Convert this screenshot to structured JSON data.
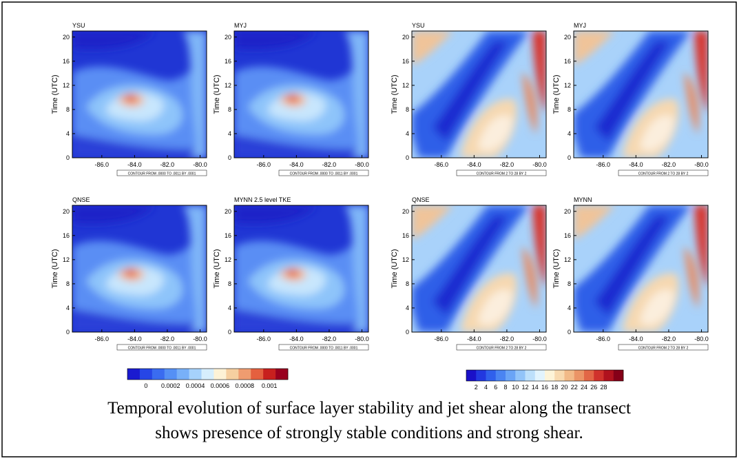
{
  "panels": [
    {
      "title": "YSU",
      "ylabel": "Time (UTC)",
      "kind": "stability",
      "note": "CONTOUR FROM .0000 TO .0011 BY .0001"
    },
    {
      "title": "MYJ",
      "ylabel": "Time (UTC)",
      "kind": "stability",
      "note": "CONTOUR FROM .0000 TO .0011 BY .0001"
    },
    {
      "title": "YSU",
      "ylabel": "Time (UTC)",
      "kind": "shear",
      "note": "CONTOUR FROM 2 TO 28 BY 2"
    },
    {
      "title": "MYJ",
      "ylabel": "Time (UTC)",
      "kind": "shear",
      "note": "CONTOUR FROM 2 TO 28 BY 2"
    },
    {
      "title": "QNSE",
      "ylabel": "Time (UTC)",
      "kind": "stability",
      "note": "CONTOUR FROM .0000 TO .0011 BY .0001"
    },
    {
      "title": "MYNN 2.5 level TKE",
      "ylabel": "Time (UTC)",
      "kind": "stability",
      "note": "CONTOUR FROM .0000 TO .0011 BY .0001"
    },
    {
      "title": "QNSE",
      "ylabel": "Time (UTC)",
      "kind": "shear",
      "note": "CONTOUR FROM 2 TO 28 BY 2"
    },
    {
      "title": "MYNN",
      "ylabel": "Time (UTC)",
      "kind": "shear",
      "note": "CONTOUR FROM 2 TO 28 BY 2"
    }
  ],
  "axes": {
    "yticks": [
      0,
      4,
      8,
      12,
      16,
      20
    ],
    "ylim": [
      0,
      21
    ],
    "xticks": [
      {
        "value": -86,
        "label": "-86.0"
      },
      {
        "value": -84,
        "label": "-84.0"
      },
      {
        "value": -82,
        "label": "-82.0"
      },
      {
        "value": -80,
        "label": "-80.0"
      }
    ],
    "xlim": [
      -87.8,
      -79.6
    ]
  },
  "colorbars": [
    {
      "colors": [
        "#1a1ad0",
        "#2646e6",
        "#3a6cf0",
        "#5590f5",
        "#78b0f8",
        "#a6d2fb",
        "#d6eefd",
        "#fdf2d6",
        "#f6cfa0",
        "#ef9c70",
        "#e4603f",
        "#c8201e",
        "#99001e"
      ],
      "labels": [
        "0",
        "0.0002",
        "0.0004",
        "0.0006",
        "0.0008",
        "0.001"
      ]
    },
    {
      "colors": [
        "#1a10c8",
        "#2238e0",
        "#3060ec",
        "#4a84f2",
        "#6aa4f6",
        "#92c4f9",
        "#bde0fb",
        "#e2f4fd",
        "#fdf4d8",
        "#f8dab0",
        "#f2ba88",
        "#eb9466",
        "#e26646",
        "#d0322c",
        "#b0121e",
        "#850018"
      ],
      "labels": [
        "2",
        "4",
        "6",
        "8",
        "10",
        "12",
        "14",
        "16",
        "18",
        "20",
        "22",
        "24",
        "26",
        "28"
      ]
    }
  ],
  "caption": [
    "Temporal evolution of surface layer stability and jet shear along the transect",
    "shows presence of strongly stable conditions and strong shear."
  ]
}
